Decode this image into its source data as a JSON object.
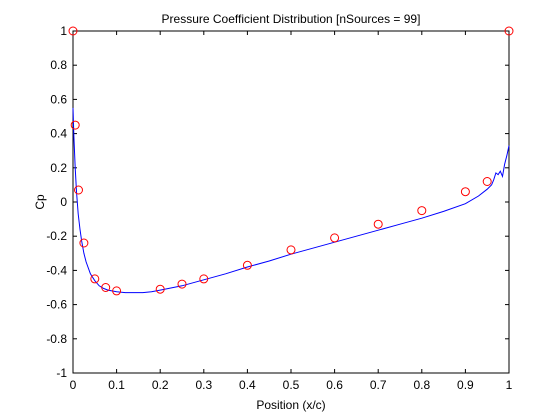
{
  "chart_data": {
    "type": "line",
    "title": "Pressure Coefficient Distribution [nSources = 99]",
    "xlabel": "Position (x/c)",
    "ylabel": "Cp",
    "xlim": [
      0,
      1
    ],
    "ylim": [
      -1,
      1
    ],
    "x_ticks": [
      0,
      0.1,
      0.2,
      0.3,
      0.4,
      0.5,
      0.6,
      0.7,
      0.8,
      0.9,
      1
    ],
    "x_tick_labels": [
      "0",
      "0.1",
      "0.2",
      "0.3",
      "0.4",
      "0.5",
      "0.6",
      "0.7",
      "0.8",
      "0.9",
      "1"
    ],
    "y_ticks": [
      1,
      0.8,
      0.6,
      0.4,
      0.2,
      0,
      -0.2,
      -0.4,
      -0.6,
      -0.8,
      -1
    ],
    "y_tick_labels": [
      "1",
      "0.8",
      "0.6",
      "0.4",
      "0.2",
      "0",
      "-0.2",
      "-0.4",
      "-0.6",
      "-0.8",
      "-1"
    ],
    "grid": false,
    "colors": {
      "line": "#0000ff",
      "markers": "#ff0000",
      "axes": "#000000"
    },
    "series": [
      {
        "type": "line",
        "style": "solid-blue",
        "x": [
          0,
          0.002,
          0.005,
          0.008,
          0.012,
          0.016,
          0.02,
          0.025,
          0.03,
          0.04,
          0.05,
          0.06,
          0.07,
          0.08,
          0.1,
          0.12,
          0.14,
          0.16,
          0.18,
          0.2,
          0.25,
          0.3,
          0.35,
          0.4,
          0.45,
          0.5,
          0.55,
          0.6,
          0.65,
          0.7,
          0.75,
          0.8,
          0.85,
          0.9,
          0.93,
          0.95,
          0.96,
          0.965,
          0.97,
          0.975,
          0.98,
          0.985,
          0.99,
          0.995,
          1.0
        ],
        "y": [
          0.55,
          0.38,
          0.2,
          0.06,
          -0.07,
          -0.16,
          -0.23,
          -0.3,
          -0.35,
          -0.42,
          -0.46,
          -0.49,
          -0.505,
          -0.515,
          -0.525,
          -0.53,
          -0.53,
          -0.53,
          -0.525,
          -0.515,
          -0.49,
          -0.455,
          -0.42,
          -0.38,
          -0.345,
          -0.305,
          -0.27,
          -0.235,
          -0.2,
          -0.165,
          -0.13,
          -0.095,
          -0.055,
          -0.01,
          0.035,
          0.075,
          0.1,
          0.13,
          0.17,
          0.16,
          0.18,
          0.15,
          0.22,
          0.27,
          0.33
        ]
      },
      {
        "type": "scatter",
        "style": "red-circles",
        "x": [
          0.0,
          0.005,
          0.0125,
          0.025,
          0.05,
          0.075,
          0.1,
          0.2,
          0.25,
          0.3,
          0.4,
          0.5,
          0.6,
          0.7,
          0.8,
          0.9,
          0.95,
          1.0
        ],
        "y": [
          1.0,
          0.45,
          0.07,
          -0.24,
          -0.45,
          -0.5,
          -0.52,
          -0.51,
          -0.48,
          -0.45,
          -0.37,
          -0.28,
          -0.21,
          -0.13,
          -0.05,
          0.06,
          0.12,
          1.0
        ]
      }
    ]
  }
}
